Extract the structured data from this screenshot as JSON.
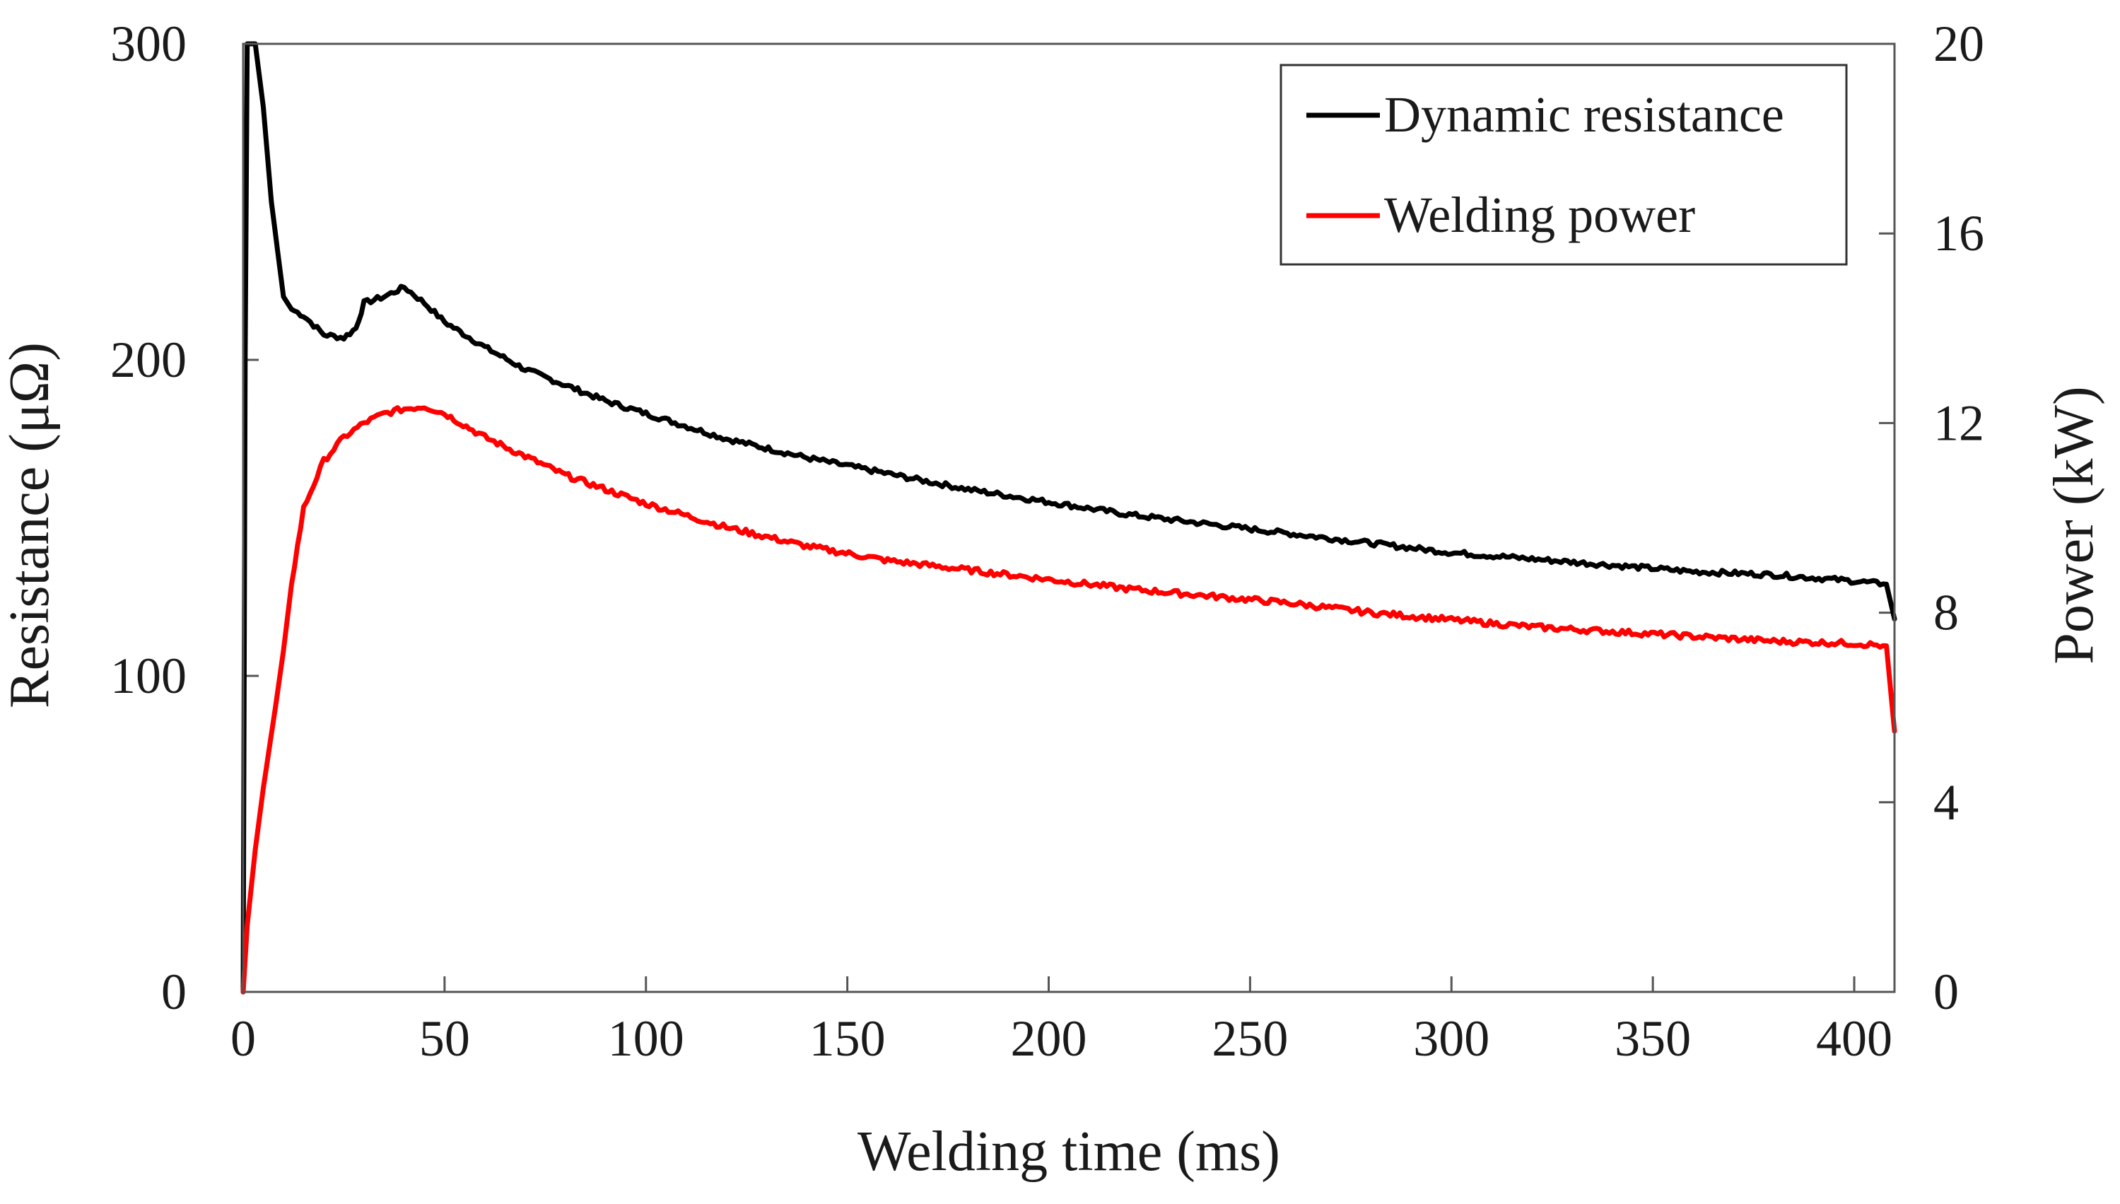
{
  "chart_data": {
    "type": "line",
    "title": "",
    "xlabel": "Welding time (ms)",
    "ylabel": "Resistance (μΩ)",
    "y2label": "Power (kW)",
    "xlim": [
      0,
      410
    ],
    "ylim": [
      0,
      300
    ],
    "y2lim": [
      0,
      20
    ],
    "x_ticks": [
      0,
      50,
      100,
      150,
      200,
      250,
      300,
      350,
      400
    ],
    "y_ticks": [
      0,
      100,
      200,
      300
    ],
    "y2_ticks": [
      0,
      4,
      8,
      12,
      16,
      20
    ],
    "grid": false,
    "legend_position": "top-right",
    "series": [
      {
        "name": "Dynamic resistance",
        "axis": "left",
        "color": "#000000",
        "x": [
          0,
          0.5,
          1,
          2,
          3,
          5,
          7,
          10,
          12,
          15,
          20,
          25,
          28,
          30,
          35,
          40,
          45,
          50,
          60,
          70,
          80,
          90,
          100,
          120,
          140,
          160,
          180,
          200,
          220,
          240,
          260,
          280,
          300,
          320,
          340,
          360,
          380,
          400,
          408,
          410
        ],
        "y": [
          0,
          200,
          300,
          300,
          300,
          280,
          250,
          220,
          216,
          214,
          208,
          207,
          210,
          218,
          220,
          223,
          218,
          212,
          204,
          197,
          192,
          187,
          183,
          175,
          169,
          164,
          159,
          155,
          151,
          148,
          145,
          142,
          139,
          137,
          135,
          133,
          132,
          130,
          129,
          118
        ]
      },
      {
        "name": "Welding power",
        "axis": "right",
        "color": "#ff0000",
        "x": [
          0,
          1,
          3,
          5,
          8,
          10,
          12,
          15,
          20,
          25,
          30,
          35,
          40,
          45,
          50,
          60,
          70,
          80,
          90,
          100,
          120,
          140,
          160,
          180,
          200,
          220,
          240,
          260,
          280,
          300,
          320,
          340,
          360,
          380,
          400,
          408,
          410
        ],
        "y": [
          0,
          1.4,
          3.0,
          4.3,
          6.0,
          7.2,
          8.6,
          10.2,
          11.2,
          11.7,
          12.0,
          12.2,
          12.3,
          12.35,
          12.2,
          11.7,
          11.3,
          10.9,
          10.6,
          10.3,
          9.8,
          9.4,
          9.1,
          8.9,
          8.7,
          8.5,
          8.35,
          8.2,
          8.0,
          7.85,
          7.7,
          7.6,
          7.5,
          7.4,
          7.35,
          7.3,
          5.5
        ]
      }
    ]
  }
}
